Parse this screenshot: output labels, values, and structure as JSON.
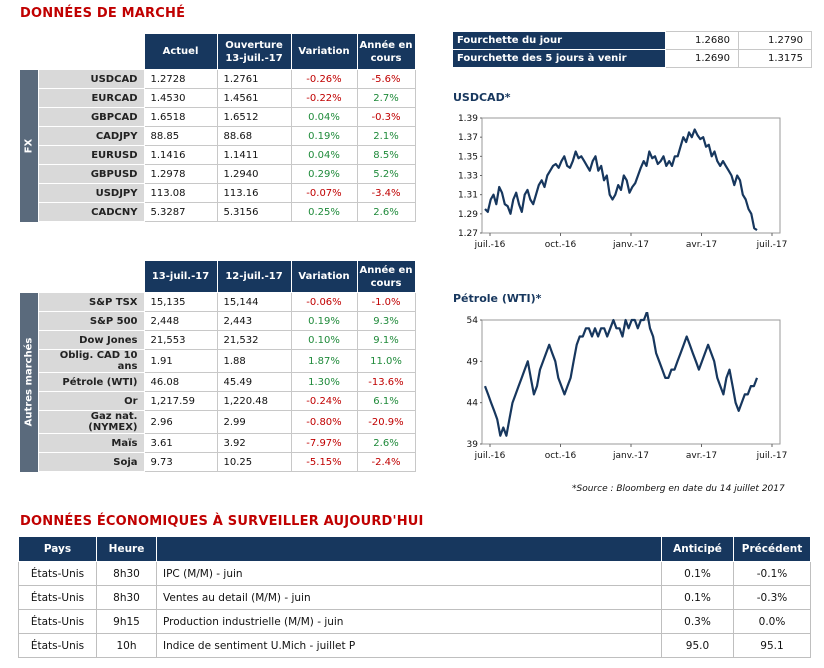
{
  "market_title": "DONNÉES DE MARCHÉ",
  "fx": {
    "side_label": "FX",
    "headers": [
      "Actuel",
      "Ouverture\n13-juil.-17",
      "Variation",
      "Année en\ncours"
    ],
    "rows": [
      {
        "name": "USDCAD",
        "actuel": "1.2728",
        "ouverture": "1.2761",
        "variation": "-0.26%",
        "annee": "-5.6%",
        "var_sign": "neg",
        "an_sign": "neg"
      },
      {
        "name": "EURCAD",
        "actuel": "1.4530",
        "ouverture": "1.4561",
        "variation": "-0.22%",
        "annee": "2.7%",
        "var_sign": "neg",
        "an_sign": "pos"
      },
      {
        "name": "GBPCAD",
        "actuel": "1.6518",
        "ouverture": "1.6512",
        "variation": "0.04%",
        "annee": "-0.3%",
        "var_sign": "pos",
        "an_sign": "neg"
      },
      {
        "name": "CADJPY",
        "actuel": "88.85",
        "ouverture": "88.68",
        "variation": "0.19%",
        "annee": "2.1%",
        "var_sign": "pos",
        "an_sign": "pos"
      },
      {
        "name": "EURUSD",
        "actuel": "1.1416",
        "ouverture": "1.1411",
        "variation": "0.04%",
        "annee": "8.5%",
        "var_sign": "pos",
        "an_sign": "pos"
      },
      {
        "name": "GBPUSD",
        "actuel": "1.2978",
        "ouverture": "1.2940",
        "variation": "0.29%",
        "annee": "5.2%",
        "var_sign": "pos",
        "an_sign": "pos"
      },
      {
        "name": "USDJPY",
        "actuel": "113.08",
        "ouverture": "113.16",
        "variation": "-0.07%",
        "annee": "-3.4%",
        "var_sign": "neg",
        "an_sign": "neg"
      },
      {
        "name": "CADCNY",
        "actuel": "5.3287",
        "ouverture": "5.3156",
        "variation": "0.25%",
        "annee": "2.6%",
        "var_sign": "pos",
        "an_sign": "pos"
      }
    ]
  },
  "other": {
    "side_label": "Autres marchés",
    "headers": [
      "13-juil.-17",
      "12-juil.-17",
      "Variation",
      "Année en\ncours"
    ],
    "rows": [
      {
        "name": "S&P TSX",
        "d1": "15,135",
        "d2": "15,144",
        "variation": "-0.06%",
        "annee": "-1.0%",
        "var_sign": "neg",
        "an_sign": "neg"
      },
      {
        "name": "S&P 500",
        "d1": "2,448",
        "d2": "2,443",
        "variation": "0.19%",
        "annee": "9.3%",
        "var_sign": "pos",
        "an_sign": "pos"
      },
      {
        "name": "Dow Jones",
        "d1": "21,553",
        "d2": "21,532",
        "variation": "0.10%",
        "annee": "9.1%",
        "var_sign": "pos",
        "an_sign": "pos"
      },
      {
        "name": "Oblig. CAD 10 ans",
        "d1": "1.91",
        "d2": "1.88",
        "variation": "1.87%",
        "annee": "11.0%",
        "var_sign": "pos",
        "an_sign": "pos"
      },
      {
        "name": "Pétrole (WTI)",
        "d1": "46.08",
        "d2": "45.49",
        "variation": "1.30%",
        "annee": "-13.6%",
        "var_sign": "pos",
        "an_sign": "neg"
      },
      {
        "name": "Or",
        "d1": "1,217.59",
        "d2": "1,220.48",
        "variation": "-0.24%",
        "annee": "6.1%",
        "var_sign": "neg",
        "an_sign": "pos"
      },
      {
        "name": "Gaz nat. (NYMEX)",
        "d1": "2.96",
        "d2": "2.99",
        "variation": "-0.80%",
        "annee": "-20.9%",
        "var_sign": "neg",
        "an_sign": "neg"
      },
      {
        "name": "Maïs",
        "d1": "3.61",
        "d2": "3.92",
        "variation": "-7.97%",
        "annee": "2.6%",
        "var_sign": "neg",
        "an_sign": "pos"
      },
      {
        "name": "Soja",
        "d1": "9.73",
        "d2": "10.25",
        "variation": "-5.15%",
        "annee": "-2.4%",
        "var_sign": "neg",
        "an_sign": "neg"
      }
    ]
  },
  "ranges": [
    {
      "label": "Fourchette du jour",
      "low": "1.2680",
      "high": "1.2790"
    },
    {
      "label": "Fourchette des 5 jours à venir",
      "low": "1.2690",
      "high": "1.3175"
    }
  ],
  "source_note": "*Source : Bloomberg en date du  14 juillet 2017",
  "chart_data": [
    {
      "type": "line",
      "title": "USDCAD*",
      "x_ticks": [
        "juil.-16",
        "oct.-16",
        "janv.-17",
        "avr.-17",
        "juil.-17"
      ],
      "y_ticks": [
        "1.39",
        "1.37",
        "1.35",
        "1.33",
        "1.31",
        "1.29",
        "1.27"
      ],
      "ylim": [
        1.27,
        1.39
      ],
      "grid": false,
      "series": [
        {
          "values": [
            1.295,
            1.292,
            1.305,
            1.31,
            1.3,
            1.318,
            1.312,
            1.3,
            1.298,
            1.29,
            1.305,
            1.312,
            1.3,
            1.292,
            1.31,
            1.315,
            1.305,
            1.3,
            1.31,
            1.32,
            1.325,
            1.318,
            1.33,
            1.335,
            1.34,
            1.342,
            1.338,
            1.345,
            1.35,
            1.34,
            1.338,
            1.345,
            1.355,
            1.348,
            1.35,
            1.345,
            1.34,
            1.335,
            1.345,
            1.35,
            1.335,
            1.34,
            1.325,
            1.33,
            1.31,
            1.305,
            1.31,
            1.32,
            1.315,
            1.33,
            1.325,
            1.312,
            1.318,
            1.322,
            1.33,
            1.338,
            1.345,
            1.34,
            1.355,
            1.348,
            1.35,
            1.342,
            1.345,
            1.35,
            1.34,
            1.345,
            1.34,
            1.35,
            1.35,
            1.36,
            1.37,
            1.365,
            1.375,
            1.37,
            1.378,
            1.372,
            1.368,
            1.37,
            1.36,
            1.362,
            1.35,
            1.355,
            1.345,
            1.34,
            1.345,
            1.34,
            1.335,
            1.33,
            1.32,
            1.33,
            1.325,
            1.31,
            1.305,
            1.295,
            1.29,
            1.275,
            1.273
          ]
        }
      ]
    },
    {
      "type": "line",
      "title": "Pétrole (WTI)*",
      "x_ticks": [
        "juil.-16",
        "oct.-16",
        "janv.-17",
        "avr.-17",
        "juil.-17"
      ],
      "y_ticks": [
        "54",
        "49",
        "44",
        "39"
      ],
      "ylim": [
        39,
        54
      ],
      "grid": false,
      "series": [
        {
          "values": [
            46,
            45,
            44,
            43,
            42,
            40,
            41,
            40,
            42,
            44,
            45,
            46,
            47,
            48,
            49,
            47,
            45,
            46,
            48,
            49,
            50,
            51,
            50,
            49,
            47,
            46,
            45,
            46,
            47,
            49,
            51,
            52,
            52,
            53,
            53,
            52,
            53,
            52,
            53,
            53,
            52,
            53,
            54,
            53,
            53,
            52,
            54,
            53,
            54,
            54,
            53,
            54,
            54,
            55,
            53,
            52,
            50,
            49,
            48,
            47,
            47,
            48,
            48,
            49,
            50,
            51,
            52,
            51,
            50,
            49,
            48,
            49,
            50,
            51,
            50,
            49,
            47,
            46,
            45,
            47,
            48,
            46,
            44,
            43,
            44,
            45,
            45,
            46,
            46,
            47
          ]
        }
      ]
    }
  ],
  "econ": {
    "title": "DONNÉES ÉCONOMIQUES À SURVEILLER AUJOURD'HUI",
    "headers": {
      "pays": "Pays",
      "heure": "Heure",
      "event": "",
      "anticipe": "Anticipé",
      "precedent": "Précédent"
    },
    "rows": [
      {
        "pays": "États-Unis",
        "heure": "8h30",
        "event": "IPC (M/M) - juin",
        "anticipe": "0.1%",
        "precedent": "-0.1%"
      },
      {
        "pays": "États-Unis",
        "heure": "8h30",
        "event": "Ventes au detail (M/M) - juin",
        "anticipe": "0.1%",
        "precedent": "-0.3%"
      },
      {
        "pays": "États-Unis",
        "heure": "9h15",
        "event": "Production industrielle (M/M) - juin",
        "anticipe": "0.3%",
        "precedent": "0.0%"
      },
      {
        "pays": "États-Unis",
        "heure": "10h",
        "event": "Indice de sentiment U.Mich - juillet P",
        "anticipe": "95.0",
        "precedent": "95.1"
      }
    ]
  },
  "colors": {
    "header_navy": "#17375e",
    "title_red": "#c00000",
    "positive": "#1f8a3a",
    "negative": "#c00000",
    "line": "#17375e"
  }
}
